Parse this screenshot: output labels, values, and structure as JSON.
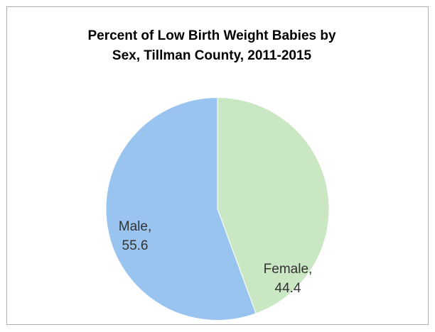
{
  "chart_data": {
    "type": "pie",
    "title": [
      "Percent of Low Birth Weight Babies by",
      "Sex, Tillman County, 2011-2015"
    ],
    "values": [
      44.4,
      55.6
    ],
    "value_labels": [
      "Female, 44.4",
      "Male, 55.6"
    ],
    "colors": [
      "#c9e7c2",
      "#99c4f0"
    ]
  }
}
